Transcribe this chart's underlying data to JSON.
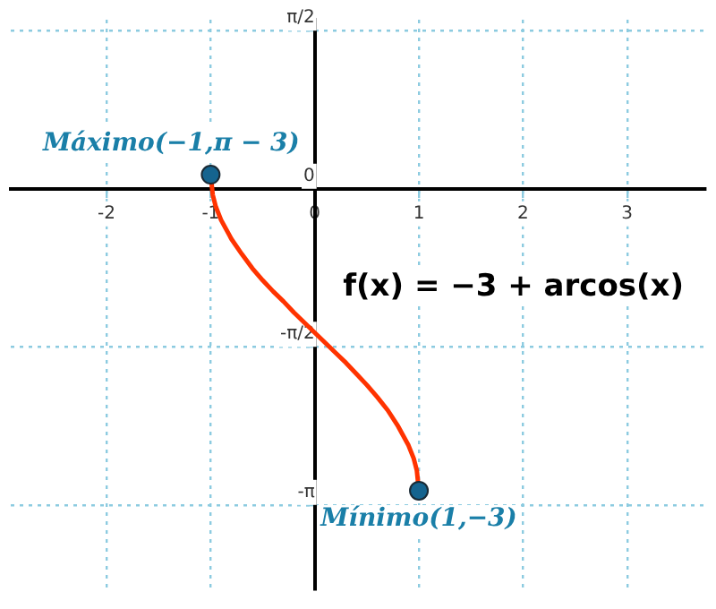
{
  "chart_data": {
    "type": "line",
    "x": [
      -1,
      -0.98,
      -0.95,
      -0.9,
      -0.8,
      -0.7,
      -0.6,
      -0.5,
      -0.4,
      -0.3,
      -0.2,
      -0.1,
      0,
      0.1,
      0.2,
      0.3,
      0.4,
      0.5,
      0.6,
      0.7,
      0.8,
      0.9,
      0.95,
      0.98,
      1
    ],
    "series": [
      {
        "type": "line",
        "color": "#ff3300",
        "marker": "none",
        "values": [
          0.14,
          -0.06,
          -0.18,
          -0.31,
          -0.5,
          -0.65,
          -0.79,
          -0.91,
          -1.02,
          -1.12,
          -1.23,
          -1.33,
          -1.43,
          -1.53,
          -1.63,
          -1.73,
          -1.84,
          -1.95,
          -2.07,
          -2.2,
          -2.36,
          -2.55,
          -2.68,
          -2.8,
          -3
        ]
      },
      {
        "type": "scatter",
        "color": "#15648f",
        "marker": "circle",
        "x": [
          -1,
          1
        ],
        "values": [
          0.14,
          -3
        ]
      }
    ],
    "xlim": [
      -2.92,
      3.75
    ],
    "ylim": [
      -3.98,
      1.68
    ],
    "xticks": [
      -2,
      -1,
      0,
      1,
      2,
      3
    ],
    "yticks": [
      {
        "value": 1.5708,
        "label": "π/2"
      },
      0,
      {
        "value": -1.5708,
        "label": "-π/2"
      },
      {
        "value": -3.1416,
        "label": "-π"
      }
    ],
    "grid": true,
    "annotations": [
      {
        "text": "Máximo(−1,π − 3)",
        "x": -1,
        "y": 0.14
      },
      {
        "text": "Mínimo(1,−3)",
        "x": 1,
        "y": -3
      },
      "f(x) = −3 + arcos(x)"
    ]
  }
}
